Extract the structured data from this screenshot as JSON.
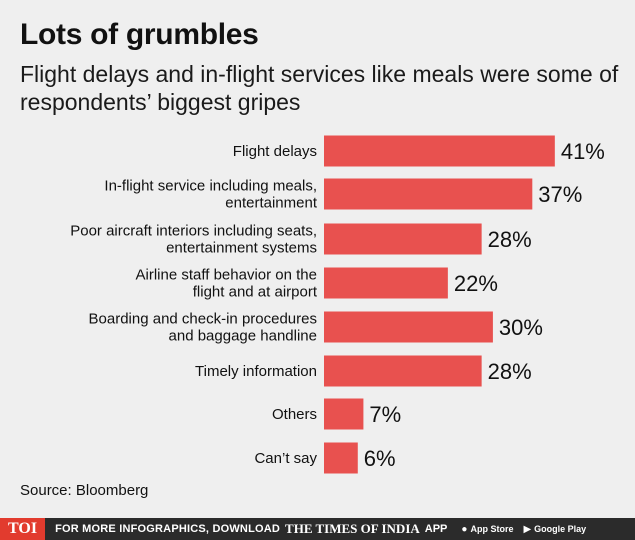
{
  "header": {
    "title": "Lots of grumbles",
    "subtitle": "Flight delays and in-flight services like meals were some of respondents’ biggest gripes"
  },
  "chart_data": {
    "type": "bar",
    "orientation": "horizontal",
    "categories": [
      [
        "Flight delays"
      ],
      [
        "In-flight service including meals,",
        "entertainment"
      ],
      [
        "Poor aircraft interiors including seats,",
        "entertainment systems"
      ],
      [
        "Airline staff behavior on the",
        "flight and at airport"
      ],
      [
        "Boarding and check-in procedures",
        "and baggage handline"
      ],
      [
        "Timely information"
      ],
      [
        "Others"
      ],
      [
        "Can’t say"
      ]
    ],
    "values": [
      41,
      37,
      28,
      22,
      30,
      28,
      7,
      6
    ],
    "value_labels": [
      "41%",
      "37%",
      "28%",
      "22%",
      "30%",
      "28%",
      "7%",
      "6%"
    ],
    "unit": "%",
    "bar_color": "#e8514f",
    "grid": false,
    "legend": "none"
  },
  "source": "Source: Bloomberg",
  "footer": {
    "logo": "TOI",
    "text": "FOR MORE INFOGRAPHICS, DOWNLOAD",
    "brand": "THE TIMES OF INDIA",
    "app": "APP",
    "app_store": "App Store",
    "google_play": "Google Play",
    "app_store_icon": "apple-icon",
    "google_play_icon": "play-icon"
  }
}
